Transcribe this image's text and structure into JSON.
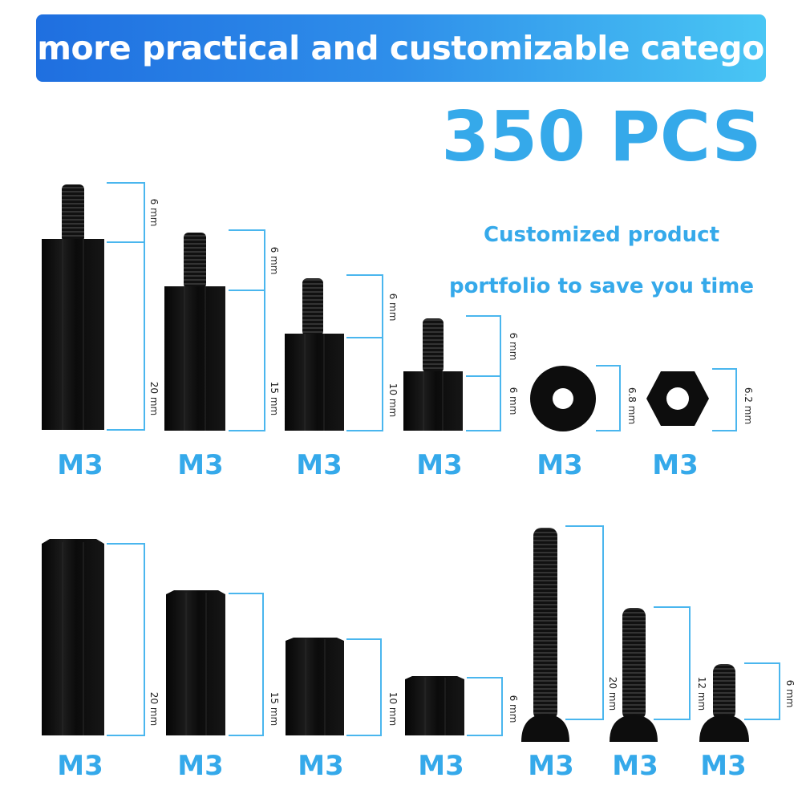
{
  "header": {
    "title": "A more practical and customizable category"
  },
  "promo": {
    "quantity": "350 PCS",
    "line1": "Customized product",
    "line2": "portfolio to save you time"
  },
  "row1": {
    "items": [
      {
        "label": "M3",
        "dims": [
          "6 mm",
          "20 mm"
        ]
      },
      {
        "label": "M3",
        "dims": [
          "6 mm",
          "15 mm"
        ]
      },
      {
        "label": "M3",
        "dims": [
          "6 mm",
          "10 mm"
        ]
      },
      {
        "label": "M3",
        "dims": [
          "6 mm",
          "6 mm"
        ]
      },
      {
        "label": "M3",
        "dims": [
          "6.8 mm"
        ]
      },
      {
        "label": "M3",
        "dims": [
          "6.2 mm"
        ]
      }
    ]
  },
  "row2": {
    "items": [
      {
        "label": "M3",
        "dims": [
          "20 mm"
        ]
      },
      {
        "label": "M3",
        "dims": [
          "15 mm"
        ]
      },
      {
        "label": "M3",
        "dims": [
          "10 mm"
        ]
      },
      {
        "label": "M3",
        "dims": [
          "6 mm"
        ]
      },
      {
        "label": "M3",
        "dims": [
          "20 mm"
        ]
      },
      {
        "label": "M3",
        "dims": [
          "12 mm"
        ]
      },
      {
        "label": "M3",
        "dims": [
          "6 mm"
        ]
      }
    ]
  },
  "colors": {
    "accent": "#35a9ea",
    "part": "#0d0d0d",
    "banner_start": "#1f6fe0",
    "banner_end": "#49c6f4"
  }
}
